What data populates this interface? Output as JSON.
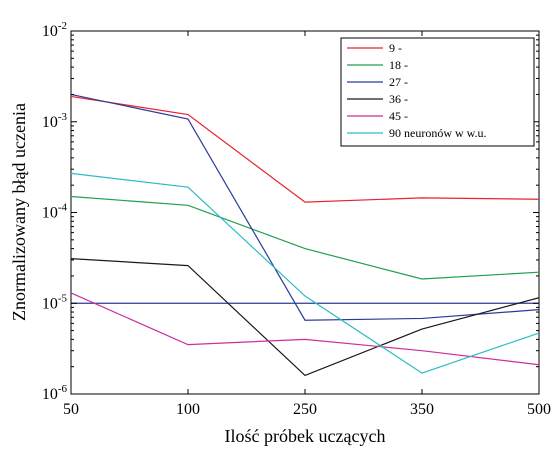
{
  "chart_data": {
    "type": "line",
    "x": [
      "50",
      "100",
      "250",
      "350",
      "500"
    ],
    "xlabel": "Ilość próbek uczących",
    "ylabel": "Znormalizowany błąd uczenia",
    "yscale": "log",
    "ylim": [
      1e-06,
      0.01
    ],
    "yticks": [
      {
        "base": "10",
        "exp": "-6"
      },
      {
        "base": "10",
        "exp": "-5"
      },
      {
        "base": "10",
        "exp": "-4"
      },
      {
        "base": "10",
        "exp": "-3"
      },
      {
        "base": "10",
        "exp": "-2"
      }
    ],
    "legend_position": "top-right",
    "series": [
      {
        "name": "9 -",
        "color": "#e8242d",
        "values": [
          0.0019,
          0.0012,
          0.00013,
          0.000145,
          0.00014
        ]
      },
      {
        "name": "18 -",
        "color": "#1fa04a",
        "values": [
          0.00015,
          0.00012,
          4e-05,
          1.85e-05,
          2.2e-05
        ]
      },
      {
        "name": "27 -",
        "color": "#2b3a9a",
        "values": [
          0.002,
          0.00107,
          6.5e-06,
          6.8e-06,
          8.5e-06
        ]
      },
      {
        "name": "36 -",
        "color": "#1a1a1a",
        "values": [
          3.1e-05,
          2.6e-05,
          1.6e-06,
          5.2e-06,
          1.15e-05
        ]
      },
      {
        "name": "45 -",
        "color": "#cc2f9c",
        "values": [
          1.3e-05,
          3.5e-06,
          4e-06,
          3e-06,
          2.1e-06
        ]
      },
      {
        "name": "90 neuronów w w.u.",
        "color": "#2cbcc4",
        "values": [
          0.00027,
          0.00019,
          1.2e-05,
          1.7e-06,
          4.7e-06
        ]
      }
    ],
    "reference_lines": [
      {
        "value": 1e-05,
        "color": "#2b3a9a"
      }
    ]
  }
}
